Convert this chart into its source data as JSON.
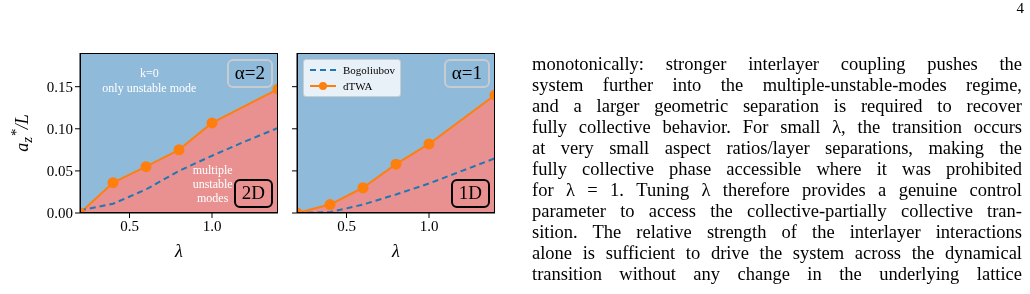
{
  "chart_data": [
    {
      "type": "line",
      "ylabel": "a$_{z}$$^{*}$/L",
      "xlabel": "λ",
      "xlim": [
        0.2,
        1.4
      ],
      "ylim": [
        0,
        0.19
      ],
      "xticks": [
        0.5,
        {
          "value": 1,
          "label": "1.0"
        }
      ],
      "yticks": [
        {
          "value": 0,
          "label": "0.00"
        },
        0.05,
        {
          "value": 0.1,
          "label": "0.10"
        },
        0.15
      ],
      "grid": false,
      "legend": false,
      "series": [
        {
          "type": "line",
          "color": "#1f77b4",
          "line_style": "dashed",
          "marker": "none",
          "x": [
            0.2,
            0.4,
            0.6,
            0.8,
            1.0,
            1.2,
            1.4
          ],
          "values": [
            0.003,
            0.011,
            0.028,
            0.05,
            0.068,
            0.085,
            0.101
          ]
        },
        {
          "type": "area",
          "color": "#ff7f0e",
          "line_style": "solid",
          "marker": "circle",
          "x": [
            0.2,
            0.4,
            0.6,
            0.8,
            1.0,
            1.4
          ],
          "values": [
            0,
            0.036,
            0.055,
            0.075,
            0.107,
            0.147
          ]
        }
      ],
      "annotations": [
        "α=2",
        "2D",
        "k=0",
        "only unstable mode",
        "multiple",
        "unstable",
        "modes"
      ]
    },
    {
      "type": "line",
      "xlabel": "λ",
      "xlim": [
        0.2,
        1.4
      ],
      "ylim": [
        0,
        0.19
      ],
      "xticks": [
        0.5,
        {
          "value": 1,
          "label": "1.0"
        }
      ],
      "yticks": [
        0,
        0.05,
        0.1,
        0.15
      ],
      "tick_labels": "x",
      "grid": false,
      "legend": "top left",
      "series": [
        {
          "name": "Bogoliubov",
          "type": "line",
          "color": "#1f77b4",
          "line_style": "dashed",
          "marker": "none",
          "x": [
            0.2,
            0.4,
            0.6,
            0.8,
            1.0,
            1.2,
            1.4
          ],
          "values": [
            0,
            0.001,
            0.01,
            0.022,
            0.035,
            0.05,
            0.065
          ]
        },
        {
          "name": "dTWA",
          "type": "area",
          "color": "#ff7f0e",
          "line_style": "solid",
          "marker": "circle",
          "x": [
            0.2,
            0.4,
            0.6,
            0.8,
            1.0,
            1.4
          ],
          "values": [
            0,
            0.01,
            0.03,
            0.058,
            0.082,
            0.14
          ]
        }
      ],
      "annotations": [
        "α=1",
        "1D"
      ]
    },
    {
      "type": "other",
      "annotations": [
        "4",
        "monotonically: stronger interlayer coupling pushes the",
        "system further into the multiple-unstable-modes regime,",
        "and a larger geometric separation is required to recover",
        "fully collective behavior. For small λ, the transition occurs",
        "at very small aspect ratios/layer separations, making the",
        "fully collective phase accessible where it was prohibited",
        "for λ = 1. Tuning λ therefore provides a genuine control",
        "parameter to access the collective-partially collective tran-",
        "sition. The relative strength of the interlayer interactions",
        "alone is sufficient to drive the system across the dynamical",
        "transition without any change in the underlying lattice"
      ]
    }
  ]
}
